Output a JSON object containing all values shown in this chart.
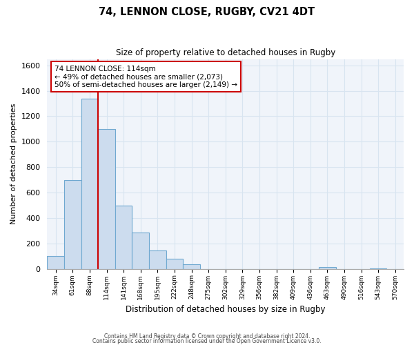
{
  "title": "74, LENNON CLOSE, RUGBY, CV21 4DT",
  "subtitle": "Size of property relative to detached houses in Rugby",
  "xlabel": "Distribution of detached houses by size in Rugby",
  "ylabel": "Number of detached properties",
  "bar_labels": [
    "34sqm",
    "61sqm",
    "88sqm",
    "114sqm",
    "141sqm",
    "168sqm",
    "195sqm",
    "222sqm",
    "248sqm",
    "275sqm",
    "302sqm",
    "329sqm",
    "356sqm",
    "382sqm",
    "409sqm",
    "436sqm",
    "463sqm",
    "490sqm",
    "516sqm",
    "543sqm",
    "570sqm"
  ],
  "bar_values": [
    100,
    700,
    1340,
    1100,
    500,
    285,
    145,
    80,
    35,
    0,
    0,
    0,
    0,
    0,
    0,
    0,
    15,
    0,
    0,
    5,
    0
  ],
  "bar_color": "#ccdcee",
  "bar_edge_color": "#6fa8d0",
  "vline_index": 3,
  "vline_color": "#cc0000",
  "ylim": [
    0,
    1650
  ],
  "yticks": [
    0,
    200,
    400,
    600,
    800,
    1000,
    1200,
    1400,
    1600
  ],
  "annotation_title": "74 LENNON CLOSE: 114sqm",
  "annotation_line1": "← 49% of detached houses are smaller (2,073)",
  "annotation_line2": "50% of semi-detached houses are larger (2,149) →",
  "annotation_box_color": "#ffffff",
  "annotation_box_edge": "#cc0000",
  "footer1": "Contains HM Land Registry data © Crown copyright and database right 2024.",
  "footer2": "Contains public sector information licensed under the Open Government Licence v3.0.",
  "grid_color": "#d8e4f0",
  "bg_color": "#f0f4fa"
}
